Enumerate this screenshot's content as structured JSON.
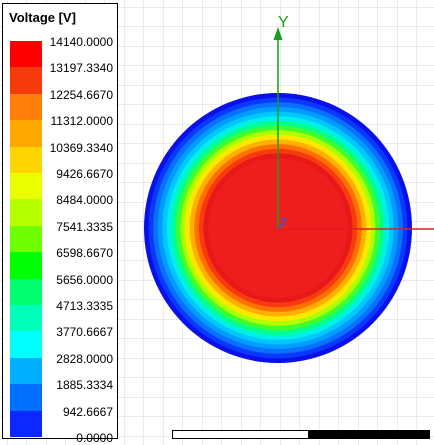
{
  "legend": {
    "title": "Voltage [V]",
    "labels": [
      "14140.0000",
      "13197.3340",
      "12254.6670",
      "11312.0000",
      "10369.3340",
      "9426.6670",
      "8484.0000",
      "7541.3335",
      "6598.6670",
      "5656.0000",
      "4713.3335",
      "3770.6667",
      "2828.0000",
      "1885.3334",
      "942.6667",
      "0.0000"
    ],
    "colors": [
      "#ff0000",
      "#f73a0c",
      "#ff7f0a",
      "#ffa800",
      "#ffd400",
      "#e8ff00",
      "#b4ff00",
      "#6fff00",
      "#00ff00",
      "#00ff70",
      "#00ffb8",
      "#00ffff",
      "#00b0ff",
      "#0070ff",
      "#0a28ff"
    ]
  },
  "axes": {
    "y_label": "Y",
    "z_label": "Z",
    "y_color": "#1b9c1b",
    "x_color": "#e31c1c",
    "z_color": "#3060e0"
  },
  "plot": {
    "ring_colors": [
      "#0a10e8",
      "#0a38ff",
      "#0a70ff",
      "#009cff",
      "#00c8ff",
      "#00f0e8",
      "#00ff90",
      "#40ff30",
      "#b0ff00",
      "#ffe800",
      "#ffb000",
      "#ff7000",
      "#f83a10",
      "#e81818",
      "#ee1e1e"
    ]
  }
}
